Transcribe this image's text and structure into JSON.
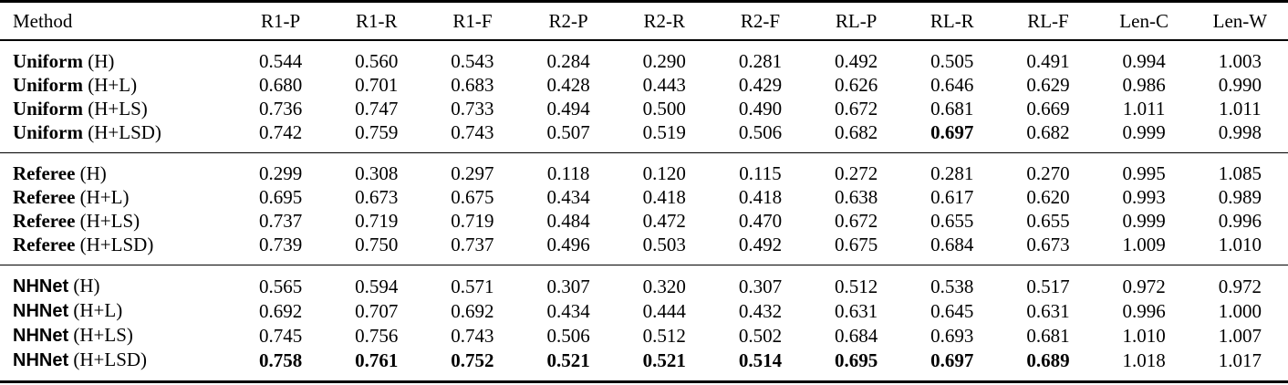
{
  "table": {
    "columns": [
      {
        "label": "Method",
        "bold": true
      },
      {
        "label": "R1-P",
        "bold": false
      },
      {
        "label": "R1-R",
        "bold": false
      },
      {
        "label": "R1-F",
        "bold": true
      },
      {
        "label": "R2-P",
        "bold": false
      },
      {
        "label": "R2-R",
        "bold": false
      },
      {
        "label": "R2-F",
        "bold": true
      },
      {
        "label": "RL-P",
        "bold": false
      },
      {
        "label": "RL-R",
        "bold": false
      },
      {
        "label": "RL-F",
        "bold": true
      },
      {
        "label": "Len-C",
        "bold": true
      },
      {
        "label": "Len-W",
        "bold": true
      }
    ],
    "groups": [
      {
        "name": "Uniform",
        "rows": [
          {
            "method": "Uniform",
            "variant": "(H)",
            "name_style": "serif",
            "values": [
              "0.544",
              "0.560",
              "0.543",
              "0.284",
              "0.290",
              "0.281",
              "0.492",
              "0.505",
              "0.491",
              "0.994",
              "1.003"
            ],
            "bold": []
          },
          {
            "method": "Uniform",
            "variant": "(H+L)",
            "name_style": "serif",
            "values": [
              "0.680",
              "0.701",
              "0.683",
              "0.428",
              "0.443",
              "0.429",
              "0.626",
              "0.646",
              "0.629",
              "0.986",
              "0.990"
            ],
            "bold": []
          },
          {
            "method": "Uniform",
            "variant": "(H+LS)",
            "name_style": "serif",
            "values": [
              "0.736",
              "0.747",
              "0.733",
              "0.494",
              "0.500",
              "0.490",
              "0.672",
              "0.681",
              "0.669",
              "1.011",
              "1.011"
            ],
            "bold": []
          },
          {
            "method": "Uniform",
            "variant": "(H+LSD)",
            "name_style": "serif",
            "values": [
              "0.742",
              "0.759",
              "0.743",
              "0.507",
              "0.519",
              "0.506",
              "0.682",
              "0.697",
              "0.682",
              "0.999",
              "0.998"
            ],
            "bold": [
              7
            ]
          }
        ]
      },
      {
        "name": "Referee",
        "rows": [
          {
            "method": "Referee",
            "variant": "(H)",
            "name_style": "serif",
            "values": [
              "0.299",
              "0.308",
              "0.297",
              "0.118",
              "0.120",
              "0.115",
              "0.272",
              "0.281",
              "0.270",
              "0.995",
              "1.085"
            ],
            "bold": []
          },
          {
            "method": "Referee",
            "variant": "(H+L)",
            "name_style": "serif",
            "values": [
              "0.695",
              "0.673",
              "0.675",
              "0.434",
              "0.418",
              "0.418",
              "0.638",
              "0.617",
              "0.620",
              "0.993",
              "0.989"
            ],
            "bold": []
          },
          {
            "method": "Referee",
            "variant": "(H+LS)",
            "name_style": "serif",
            "values": [
              "0.737",
              "0.719",
              "0.719",
              "0.484",
              "0.472",
              "0.470",
              "0.672",
              "0.655",
              "0.655",
              "0.999",
              "0.996"
            ],
            "bold": []
          },
          {
            "method": "Referee",
            "variant": "(H+LSD)",
            "name_style": "serif",
            "values": [
              "0.739",
              "0.750",
              "0.737",
              "0.496",
              "0.503",
              "0.492",
              "0.675",
              "0.684",
              "0.673",
              "1.009",
              "1.010"
            ],
            "bold": []
          }
        ]
      },
      {
        "name": "NHNet",
        "rows": [
          {
            "method": "NHNet",
            "variant": "(H)",
            "name_style": "sans",
            "values": [
              "0.565",
              "0.594",
              "0.571",
              "0.307",
              "0.320",
              "0.307",
              "0.512",
              "0.538",
              "0.517",
              "0.972",
              "0.972"
            ],
            "bold": []
          },
          {
            "method": "NHNet",
            "variant": "(H+L)",
            "name_style": "sans",
            "values": [
              "0.692",
              "0.707",
              "0.692",
              "0.434",
              "0.444",
              "0.432",
              "0.631",
              "0.645",
              "0.631",
              "0.996",
              "1.000"
            ],
            "bold": []
          },
          {
            "method": "NHNet",
            "variant": "(H+LS)",
            "name_style": "sans",
            "values": [
              "0.745",
              "0.756",
              "0.743",
              "0.506",
              "0.512",
              "0.502",
              "0.684",
              "0.693",
              "0.681",
              "1.010",
              "1.007"
            ],
            "bold": []
          },
          {
            "method": "NHNet",
            "variant": "(H+LSD)",
            "name_style": "sans",
            "values": [
              "0.758",
              "0.761",
              "0.752",
              "0.521",
              "0.521",
              "0.514",
              "0.695",
              "0.697",
              "0.689",
              "1.018",
              "1.017"
            ],
            "bold": [
              0,
              1,
              2,
              3,
              4,
              5,
              6,
              7,
              8
            ]
          }
        ]
      }
    ]
  }
}
